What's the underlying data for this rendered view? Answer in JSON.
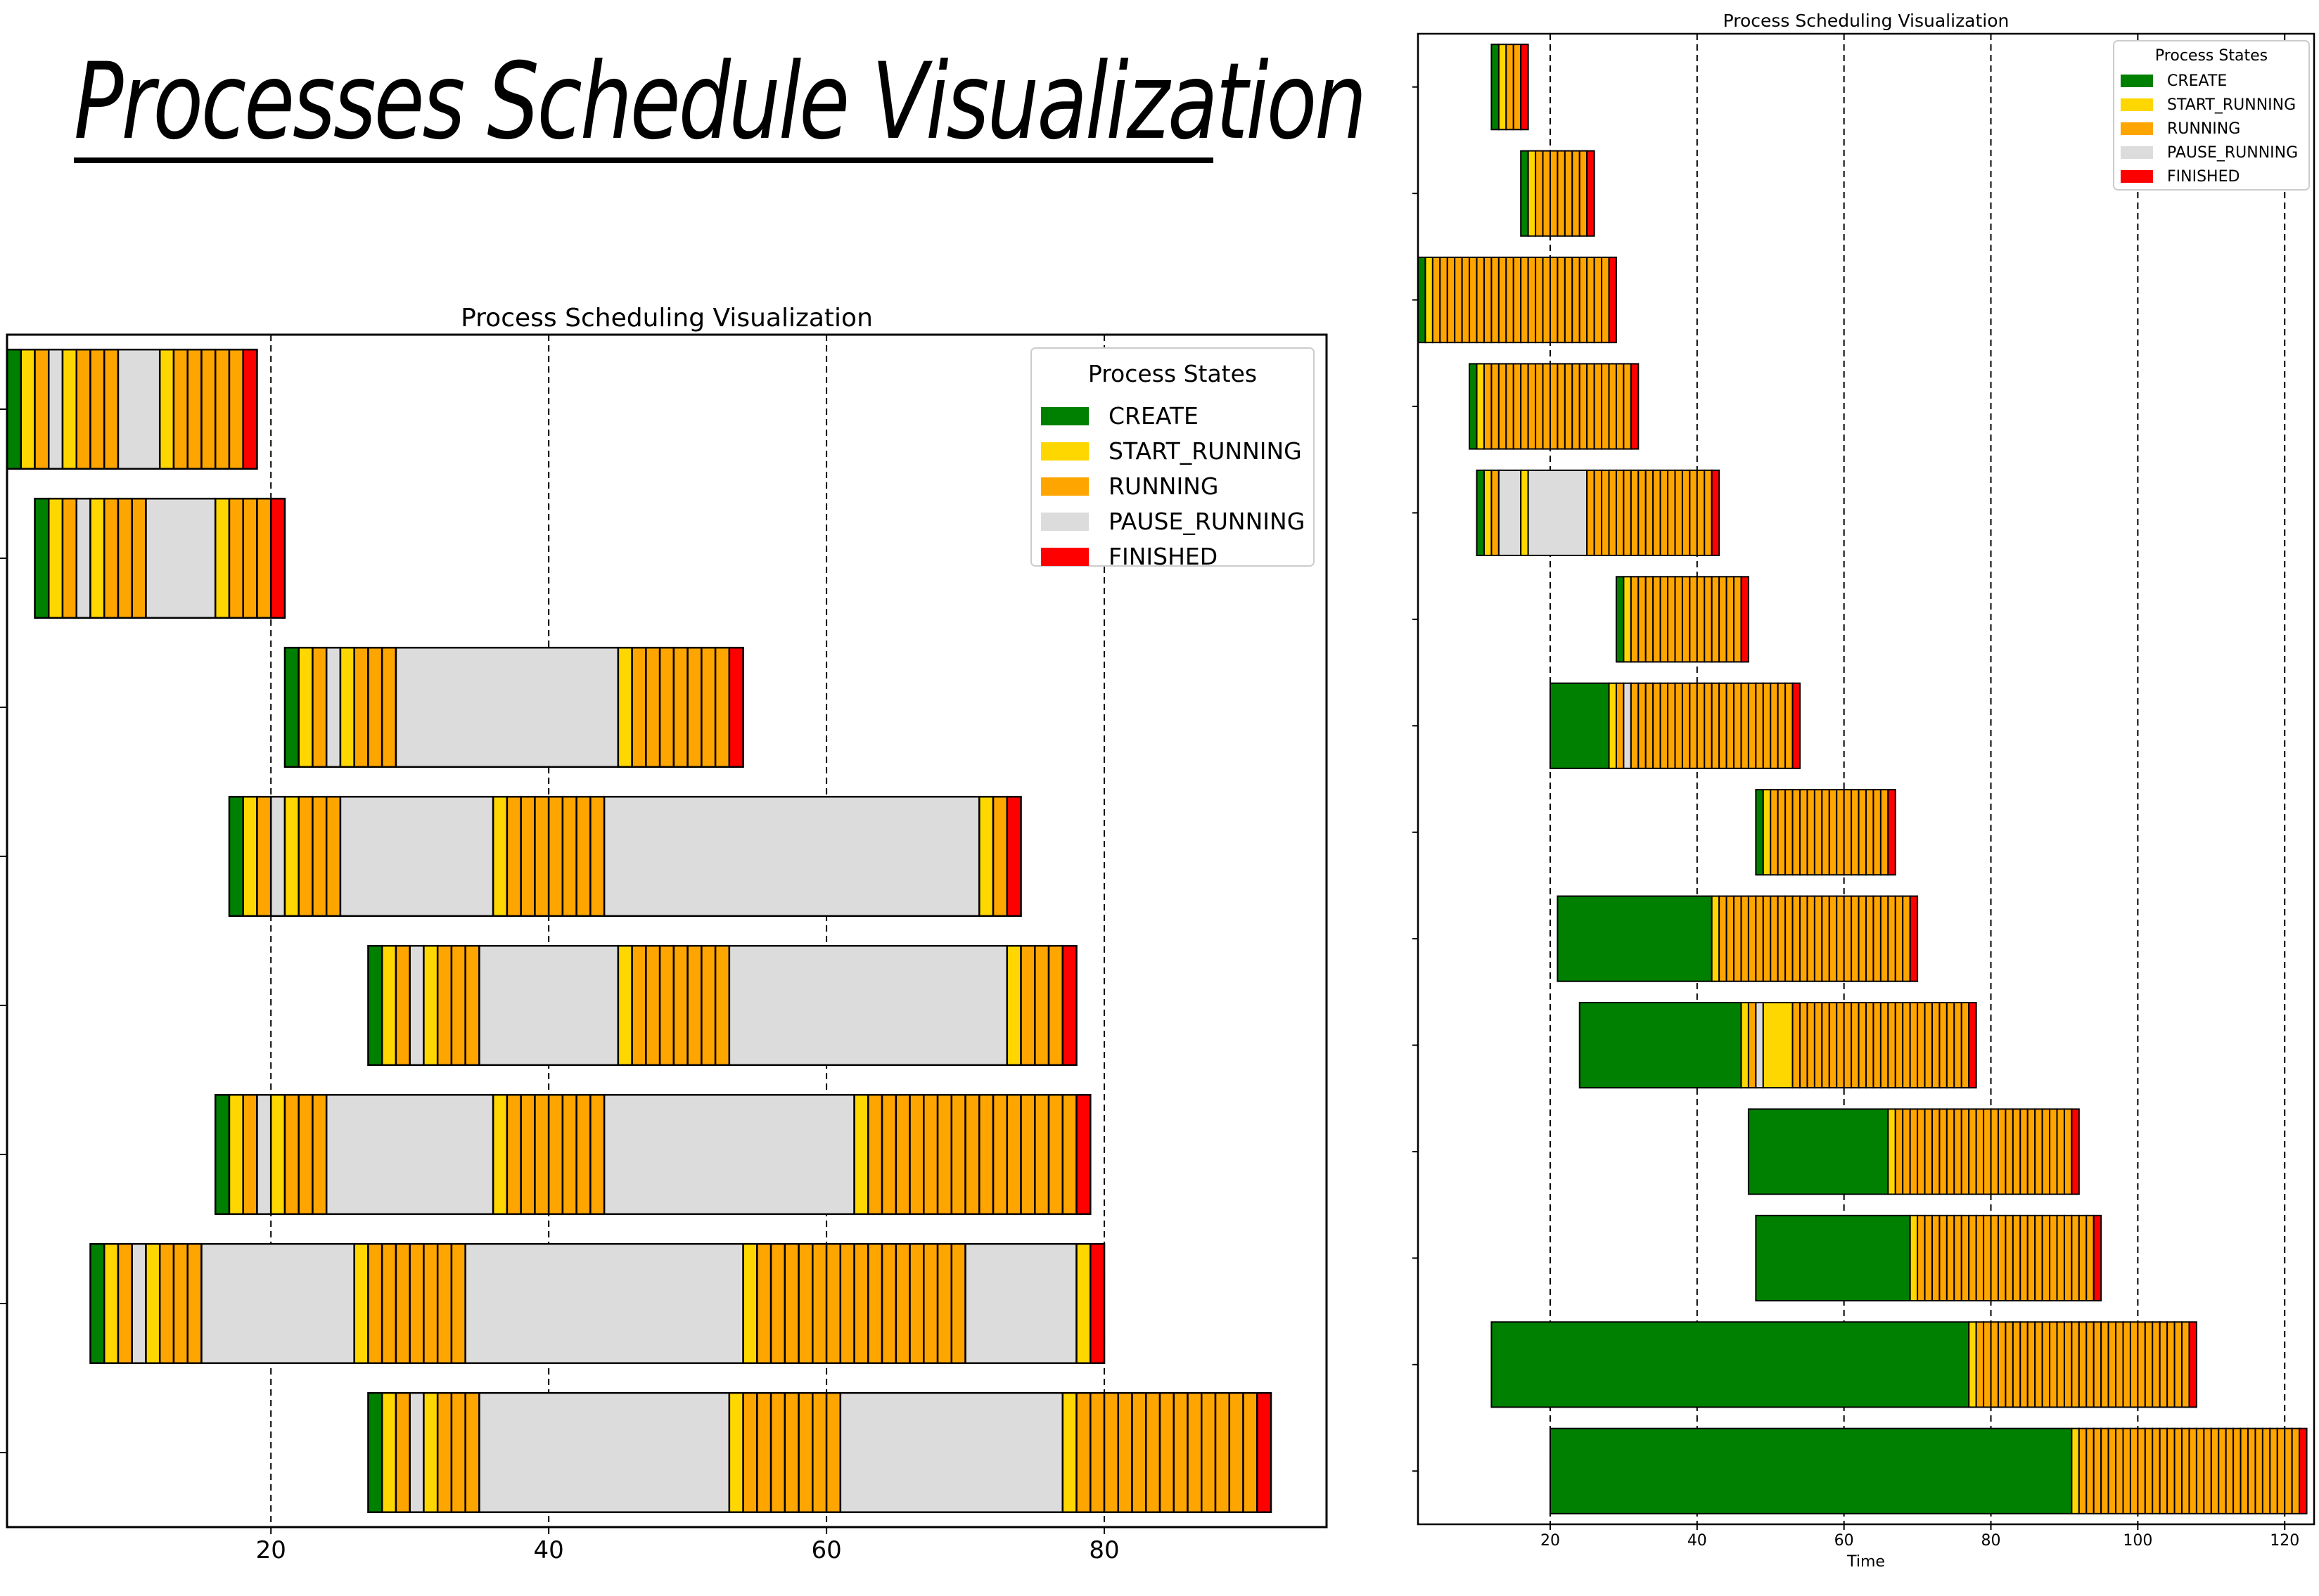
{
  "page_title": "Processes Schedule Visualization",
  "state_colors": {
    "CREATE": "#008000",
    "START_RUNNING": "#ffd700",
    "RUNNING": "#ffa500",
    "PAUSE_RUNNING": "#dcdcdc",
    "FINISHED": "#ff0000"
  },
  "chart_data": [
    {
      "type": "bar",
      "orientation": "horizontal-gantt",
      "title": "Process Scheduling Visualization",
      "xlabel": "",
      "ylabel": "",
      "xlim": [
        1,
        96
      ],
      "xticks": [
        20,
        40,
        60,
        80
      ],
      "grid": "vertical dashed at ticks",
      "legend": {
        "title": "Process States",
        "placement": "top-right",
        "entries": [
          "CREATE",
          "START_RUNNING",
          "RUNNING",
          "PAUSE_RUNNING",
          "FINISHED"
        ]
      },
      "processes": [
        {
          "segments": [
            [
              "CREATE",
              1,
              2
            ],
            [
              "START_RUNNING",
              2,
              3
            ],
            [
              "RUNNING",
              3,
              4
            ],
            [
              "PAUSE_RUNNING",
              4,
              5
            ],
            [
              "START_RUNNING",
              5,
              6
            ],
            [
              "RUNNING",
              6,
              9
            ],
            [
              "PAUSE_RUNNING",
              9,
              12
            ],
            [
              "START_RUNNING",
              12,
              13
            ],
            [
              "RUNNING",
              13,
              18
            ],
            [
              "FINISHED",
              18,
              19
            ]
          ]
        },
        {
          "segments": [
            [
              "CREATE",
              3,
              4
            ],
            [
              "START_RUNNING",
              4,
              5
            ],
            [
              "RUNNING",
              5,
              6
            ],
            [
              "PAUSE_RUNNING",
              6,
              7
            ],
            [
              "START_RUNNING",
              7,
              8
            ],
            [
              "RUNNING",
              8,
              11
            ],
            [
              "PAUSE_RUNNING",
              11,
              16
            ],
            [
              "START_RUNNING",
              16,
              17
            ],
            [
              "RUNNING",
              17,
              20
            ],
            [
              "FINISHED",
              20,
              21
            ]
          ]
        },
        {
          "segments": [
            [
              "CREATE",
              21,
              22
            ],
            [
              "START_RUNNING",
              22,
              23
            ],
            [
              "RUNNING",
              23,
              24
            ],
            [
              "PAUSE_RUNNING",
              24,
              25
            ],
            [
              "START_RUNNING",
              25,
              26
            ],
            [
              "RUNNING",
              26,
              29
            ],
            [
              "PAUSE_RUNNING",
              29,
              45
            ],
            [
              "START_RUNNING",
              45,
              46
            ],
            [
              "RUNNING",
              46,
              53
            ],
            [
              "FINISHED",
              53,
              54
            ]
          ]
        },
        {
          "segments": [
            [
              "CREATE",
              17,
              18
            ],
            [
              "START_RUNNING",
              18,
              19
            ],
            [
              "RUNNING",
              19,
              20
            ],
            [
              "PAUSE_RUNNING",
              20,
              21
            ],
            [
              "START_RUNNING",
              21,
              22
            ],
            [
              "RUNNING",
              22,
              25
            ],
            [
              "PAUSE_RUNNING",
              25,
              36
            ],
            [
              "START_RUNNING",
              36,
              37
            ],
            [
              "RUNNING",
              37,
              44
            ],
            [
              "PAUSE_RUNNING",
              44,
              71
            ],
            [
              "START_RUNNING",
              71,
              72
            ],
            [
              "RUNNING",
              72,
              73
            ],
            [
              "FINISHED",
              73,
              74
            ]
          ]
        },
        {
          "segments": [
            [
              "CREATE",
              27,
              28
            ],
            [
              "START_RUNNING",
              28,
              29
            ],
            [
              "RUNNING",
              29,
              30
            ],
            [
              "PAUSE_RUNNING",
              30,
              31
            ],
            [
              "START_RUNNING",
              31,
              32
            ],
            [
              "RUNNING",
              32,
              35
            ],
            [
              "PAUSE_RUNNING",
              35,
              45
            ],
            [
              "START_RUNNING",
              45,
              46
            ],
            [
              "RUNNING",
              46,
              53
            ],
            [
              "PAUSE_RUNNING",
              53,
              73
            ],
            [
              "START_RUNNING",
              73,
              74
            ],
            [
              "RUNNING",
              74,
              77
            ],
            [
              "FINISHED",
              77,
              78
            ]
          ]
        },
        {
          "segments": [
            [
              "CREATE",
              16,
              17
            ],
            [
              "START_RUNNING",
              17,
              18
            ],
            [
              "RUNNING",
              18,
              19
            ],
            [
              "PAUSE_RUNNING",
              19,
              20
            ],
            [
              "START_RUNNING",
              20,
              21
            ],
            [
              "RUNNING",
              21,
              24
            ],
            [
              "PAUSE_RUNNING",
              24,
              36
            ],
            [
              "START_RUNNING",
              36,
              37
            ],
            [
              "RUNNING",
              37,
              44
            ],
            [
              "PAUSE_RUNNING",
              44,
              62
            ],
            [
              "START_RUNNING",
              62,
              63
            ],
            [
              "RUNNING",
              63,
              78
            ],
            [
              "FINISHED",
              78,
              79
            ]
          ]
        },
        {
          "segments": [
            [
              "CREATE",
              7,
              8
            ],
            [
              "START_RUNNING",
              8,
              9
            ],
            [
              "RUNNING",
              9,
              10
            ],
            [
              "PAUSE_RUNNING",
              10,
              11
            ],
            [
              "START_RUNNING",
              11,
              12
            ],
            [
              "RUNNING",
              12,
              15
            ],
            [
              "PAUSE_RUNNING",
              15,
              26
            ],
            [
              "START_RUNNING",
              26,
              27
            ],
            [
              "RUNNING",
              27,
              34
            ],
            [
              "PAUSE_RUNNING",
              34,
              54
            ],
            [
              "START_RUNNING",
              54,
              55
            ],
            [
              "RUNNING",
              55,
              70
            ],
            [
              "PAUSE_RUNNING",
              70,
              78
            ],
            [
              "START_RUNNING",
              78,
              79
            ],
            [
              "FINISHED",
              79,
              80
            ]
          ]
        },
        {
          "segments": [
            [
              "CREATE",
              27,
              28
            ],
            [
              "START_RUNNING",
              28,
              29
            ],
            [
              "RUNNING",
              29,
              30
            ],
            [
              "PAUSE_RUNNING",
              30,
              31
            ],
            [
              "START_RUNNING",
              31,
              32
            ],
            [
              "RUNNING",
              32,
              35
            ],
            [
              "PAUSE_RUNNING",
              35,
              53
            ],
            [
              "START_RUNNING",
              53,
              54
            ],
            [
              "RUNNING",
              54,
              61
            ],
            [
              "PAUSE_RUNNING",
              61,
              77
            ],
            [
              "START_RUNNING",
              77,
              78
            ],
            [
              "RUNNING",
              78,
              91
            ],
            [
              "FINISHED",
              91,
              92
            ]
          ]
        }
      ]
    },
    {
      "type": "bar",
      "orientation": "horizontal-gantt",
      "title": "Process Scheduling Visualization",
      "xlabel": "Time",
      "ylabel": "",
      "xlim": [
        2,
        124
      ],
      "xticks": [
        20,
        40,
        60,
        80,
        100,
        120
      ],
      "grid": "vertical dashed at ticks",
      "legend": {
        "title": "Process States",
        "placement": "top-right",
        "entries": [
          "CREATE",
          "START_RUNNING",
          "RUNNING",
          "PAUSE_RUNNING",
          "FINISHED"
        ]
      },
      "processes": [
        {
          "segments": [
            [
              "CREATE",
              12,
              13
            ],
            [
              "START_RUNNING",
              13,
              14
            ],
            [
              "RUNNING",
              14,
              16
            ],
            [
              "FINISHED",
              16,
              17
            ]
          ]
        },
        {
          "segments": [
            [
              "CREATE",
              16,
              17
            ],
            [
              "START_RUNNING",
              17,
              18
            ],
            [
              "RUNNING",
              18,
              25
            ],
            [
              "FINISHED",
              25,
              26
            ]
          ]
        },
        {
          "segments": [
            [
              "CREATE",
              2,
              3
            ],
            [
              "START_RUNNING",
              3,
              4
            ],
            [
              "RUNNING",
              4,
              28
            ],
            [
              "FINISHED",
              28,
              29
            ]
          ]
        },
        {
          "segments": [
            [
              "CREATE",
              9,
              10
            ],
            [
              "START_RUNNING",
              10,
              11
            ],
            [
              "RUNNING",
              11,
              31
            ],
            [
              "FINISHED",
              31,
              32
            ]
          ]
        },
        {
          "segments": [
            [
              "CREATE",
              10,
              11
            ],
            [
              "START_RUNNING",
              11,
              12
            ],
            [
              "RUNNING",
              12,
              13
            ],
            [
              "PAUSE_RUNNING",
              13,
              16
            ],
            [
              "START_RUNNING",
              16,
              17
            ],
            [
              "PAUSE_RUNNING",
              17,
              25
            ],
            [
              "RUNNING",
              25,
              42
            ],
            [
              "FINISHED",
              42,
              43
            ]
          ]
        },
        {
          "segments": [
            [
              "CREATE",
              29,
              30
            ],
            [
              "START_RUNNING",
              30,
              31
            ],
            [
              "RUNNING",
              31,
              46
            ],
            [
              "FINISHED",
              46,
              47
            ]
          ]
        },
        {
          "segments": [
            [
              "CREATE",
              20,
              28
            ],
            [
              "START_RUNNING",
              28,
              29
            ],
            [
              "RUNNING",
              29,
              30
            ],
            [
              "PAUSE_RUNNING",
              30,
              31
            ],
            [
              "RUNNING",
              31,
              53
            ],
            [
              "FINISHED",
              53,
              54
            ]
          ]
        },
        {
          "segments": [
            [
              "CREATE",
              48,
              49
            ],
            [
              "START_RUNNING",
              49,
              50
            ],
            [
              "RUNNING",
              50,
              66
            ],
            [
              "FINISHED",
              66,
              67
            ]
          ]
        },
        {
          "segments": [
            [
              "CREATE",
              21,
              42
            ],
            [
              "START_RUNNING",
              42,
              43
            ],
            [
              "RUNNING",
              43,
              69
            ],
            [
              "FINISHED",
              69,
              70
            ]
          ]
        },
        {
          "segments": [
            [
              "CREATE",
              24,
              46
            ],
            [
              "START_RUNNING",
              46,
              47
            ],
            [
              "RUNNING",
              47,
              48
            ],
            [
              "PAUSE_RUNNING",
              48,
              49
            ],
            [
              "START_RUNNING",
              49,
              53
            ],
            [
              "RUNNING",
              53,
              77
            ],
            [
              "FINISHED",
              77,
              78
            ]
          ]
        },
        {
          "segments": [
            [
              "CREATE",
              47,
              66
            ],
            [
              "START_RUNNING",
              66,
              67
            ],
            [
              "RUNNING",
              67,
              91
            ],
            [
              "FINISHED",
              91,
              92
            ]
          ]
        },
        {
          "segments": [
            [
              "CREATE",
              48,
              69
            ],
            [
              "START_RUNNING",
              69,
              70
            ],
            [
              "RUNNING",
              70,
              94
            ],
            [
              "FINISHED",
              94,
              95
            ]
          ]
        },
        {
          "segments": [
            [
              "CREATE",
              12,
              77
            ],
            [
              "START_RUNNING",
              77,
              78
            ],
            [
              "RUNNING",
              78,
              107
            ],
            [
              "FINISHED",
              107,
              108
            ]
          ]
        },
        {
          "segments": [
            [
              "CREATE",
              20,
              91
            ],
            [
              "START_RUNNING",
              91,
              92
            ],
            [
              "RUNNING",
              92,
              122
            ],
            [
              "FINISHED",
              122,
              123
            ]
          ]
        }
      ]
    }
  ]
}
